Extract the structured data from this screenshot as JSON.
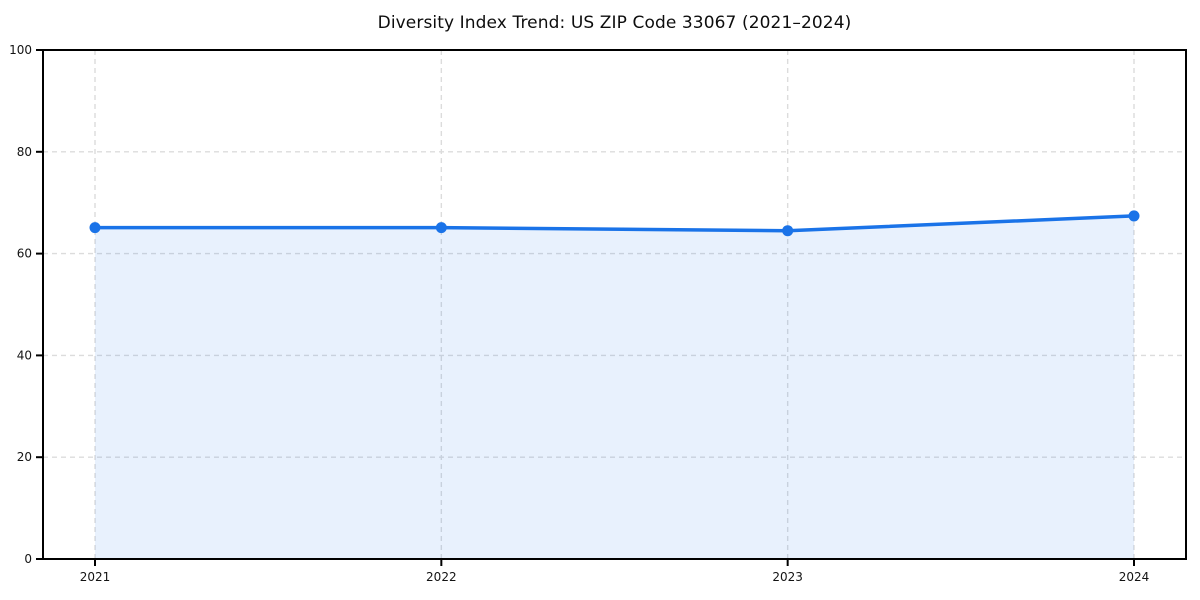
{
  "title": "Diversity Index Trend: US ZIP Code 33067 (2021–2024)",
  "colors": {
    "line": "#1a73e8",
    "marker": "#1a73e8",
    "fill": "rgba(26, 115, 232, 0.10)",
    "grid": "#dcdcdc",
    "spine": "#000000",
    "tick_text": "#131313",
    "background": "#ffffff"
  },
  "chart_data": {
    "type": "area",
    "title": "Diversity Index Trend: US ZIP Code 33067 (2021–2024)",
    "x": [
      "2021",
      "2022",
      "2023",
      "2024"
    ],
    "series": [
      {
        "name": "Diversity Index",
        "values": [
          65.1,
          65.1,
          64.5,
          67.4
        ]
      }
    ],
    "xlabel": "",
    "ylabel": "",
    "ylim": [
      0,
      100
    ],
    "yticks": [
      0,
      20,
      40,
      60,
      80,
      100
    ],
    "xticks": [
      "2021",
      "2022",
      "2023",
      "2024"
    ],
    "grid": true,
    "grid_style": "dashed",
    "legend": "none",
    "marker": "circle"
  }
}
